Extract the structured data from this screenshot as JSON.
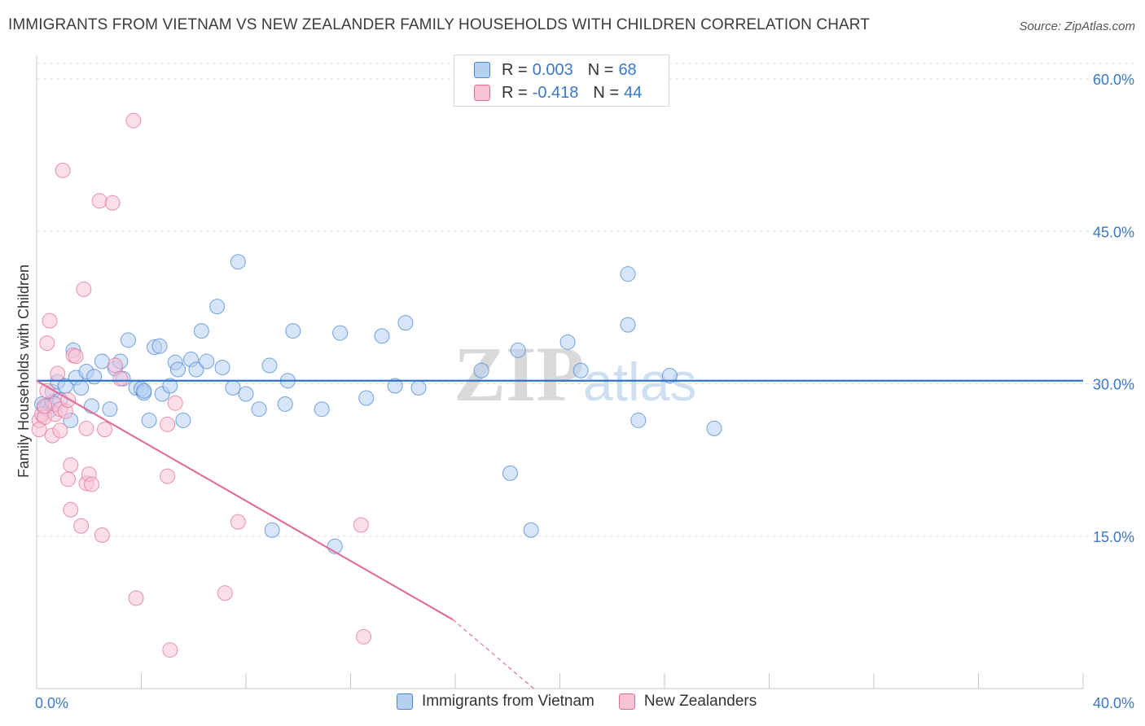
{
  "title": "IMMIGRANTS FROM VIETNAM VS NEW ZEALANDER FAMILY HOUSEHOLDS WITH CHILDREN CORRELATION CHART",
  "source": "Source: ZipAtlas.com",
  "watermark": {
    "zip": "ZIP",
    "atlas": "atlas"
  },
  "colors": {
    "blue": "#4a86d4",
    "blue_fill": "#b7d0f2",
    "pink": "#e0709b",
    "pink_fill": "#f7c3d5",
    "axis_text": "#3a78c9",
    "grid": "#dddddd"
  },
  "legend": {
    "rows": [
      {
        "r_label": "R =",
        "r_value": "0.003",
        "n_label": "N =",
        "n_value": "68"
      },
      {
        "r_label": "R =",
        "r_value": "-0.418",
        "n_label": "N =",
        "n_value": "44"
      }
    ]
  },
  "bottom_legend": [
    "Immigrants from Vietnam",
    "New Zealanders"
  ],
  "chart_data": {
    "type": "scatter",
    "title": "IMMIGRANTS FROM VIETNAM VS NEW ZEALANDER FAMILY HOUSEHOLDS WITH CHILDREN CORRELATION CHART",
    "xlabel": "",
    "ylabel": "Family Households with Children",
    "xlim": [
      0,
      40
    ],
    "ylim": [
      0,
      60
    ],
    "x_tick_labels": [
      "0.0%",
      "40.0%"
    ],
    "y_ticks": [
      15,
      30,
      45,
      60
    ],
    "y_tick_labels": [
      "15.0%",
      "30.0%",
      "45.0%",
      "60.0%"
    ],
    "grid": true,
    "legend_placement": "top-center",
    "series": [
      {
        "name": "Immigrants from Vietnam",
        "color": "#4a86d4",
        "trend": {
          "x": [
            0,
            40
          ],
          "y": [
            30.3,
            30.3
          ]
        },
        "points": [
          [
            0.2,
            28.0
          ],
          [
            0.3,
            27.6
          ],
          [
            0.4,
            27.8
          ],
          [
            0.5,
            27.4
          ],
          [
            0.6,
            28.2
          ],
          [
            0.6,
            29.2
          ],
          [
            0.8,
            30.2
          ],
          [
            0.9,
            28.4
          ],
          [
            1.1,
            29.8
          ],
          [
            1.3,
            26.4
          ],
          [
            1.4,
            33.3
          ],
          [
            1.5,
            30.6
          ],
          [
            1.7,
            29.6
          ],
          [
            1.9,
            31.2
          ],
          [
            2.1,
            27.8
          ],
          [
            2.2,
            30.7
          ],
          [
            2.5,
            32.2
          ],
          [
            2.8,
            27.5
          ],
          [
            3.0,
            31.5
          ],
          [
            3.2,
            32.2
          ],
          [
            3.3,
            30.5
          ],
          [
            3.5,
            34.3
          ],
          [
            3.8,
            29.6
          ],
          [
            4.0,
            29.5
          ],
          [
            4.1,
            29.1
          ],
          [
            4.3,
            26.4
          ],
          [
            4.5,
            33.6
          ],
          [
            4.7,
            33.7
          ],
          [
            4.8,
            29.0
          ],
          [
            5.1,
            29.8
          ],
          [
            5.3,
            32.1
          ],
          [
            5.4,
            31.4
          ],
          [
            5.6,
            26.4
          ],
          [
            5.9,
            32.4
          ],
          [
            6.1,
            31.4
          ],
          [
            6.3,
            35.2
          ],
          [
            6.5,
            32.2
          ],
          [
            6.9,
            37.6
          ],
          [
            7.1,
            31.6
          ],
          [
            7.5,
            29.6
          ],
          [
            7.7,
            42.0
          ],
          [
            8.0,
            29.0
          ],
          [
            8.5,
            27.5
          ],
          [
            8.9,
            31.8
          ],
          [
            9.0,
            15.6
          ],
          [
            9.5,
            28.0
          ],
          [
            9.6,
            30.3
          ],
          [
            9.8,
            35.2
          ],
          [
            10.9,
            27.5
          ],
          [
            11.6,
            35.0
          ],
          [
            12.6,
            28.6
          ],
          [
            13.2,
            34.7
          ],
          [
            13.7,
            29.8
          ],
          [
            14.1,
            36.0
          ],
          [
            14.6,
            29.6
          ],
          [
            17.0,
            31.3
          ],
          [
            18.1,
            21.2
          ],
          [
            18.4,
            33.3
          ],
          [
            18.9,
            15.6
          ],
          [
            20.3,
            34.1
          ],
          [
            20.8,
            31.3
          ],
          [
            22.6,
            35.8
          ],
          [
            22.6,
            40.8
          ],
          [
            23.0,
            26.4
          ],
          [
            24.2,
            30.8
          ],
          [
            25.9,
            25.6
          ],
          [
            11.4,
            14.0
          ],
          [
            4.1,
            29.3
          ]
        ]
      },
      {
        "name": "New Zealanders",
        "color": "#e0709b",
        "trend": {
          "x": [
            0,
            15.9
          ],
          "y": [
            30.3,
            6.8
          ],
          "dashed_x": [
            15.9,
            19
          ],
          "dashed_y": [
            6.8,
            0
          ]
        },
        "points": [
          [
            0.1,
            26.4
          ],
          [
            0.2,
            27.0
          ],
          [
            0.3,
            26.7
          ],
          [
            0.4,
            34.0
          ],
          [
            0.4,
            29.3
          ],
          [
            0.5,
            36.2
          ],
          [
            0.6,
            24.9
          ],
          [
            0.7,
            27.0
          ],
          [
            0.7,
            28.0
          ],
          [
            0.8,
            31.0
          ],
          [
            0.9,
            27.5
          ],
          [
            0.9,
            25.4
          ],
          [
            1.0,
            51.0
          ],
          [
            1.1,
            27.3
          ],
          [
            1.2,
            28.4
          ],
          [
            1.2,
            20.6
          ],
          [
            1.3,
            22.0
          ],
          [
            1.3,
            17.6
          ],
          [
            1.4,
            32.8
          ],
          [
            1.5,
            32.7
          ],
          [
            1.7,
            16.0
          ],
          [
            1.8,
            39.3
          ],
          [
            1.9,
            25.6
          ],
          [
            1.9,
            20.2
          ],
          [
            2.0,
            21.1
          ],
          [
            2.1,
            20.1
          ],
          [
            2.4,
            48.0
          ],
          [
            2.5,
            15.1
          ],
          [
            2.6,
            25.5
          ],
          [
            2.9,
            47.8
          ],
          [
            3.0,
            31.8
          ],
          [
            3.2,
            30.5
          ],
          [
            3.7,
            55.9
          ],
          [
            3.8,
            8.9
          ],
          [
            5.0,
            20.9
          ],
          [
            5.0,
            26.0
          ],
          [
            5.1,
            3.8
          ],
          [
            5.3,
            28.1
          ],
          [
            7.2,
            9.4
          ],
          [
            7.7,
            16.4
          ],
          [
            12.4,
            16.1
          ],
          [
            12.5,
            5.1
          ],
          [
            0.1,
            25.5
          ],
          [
            0.3,
            27.8
          ]
        ]
      }
    ]
  }
}
